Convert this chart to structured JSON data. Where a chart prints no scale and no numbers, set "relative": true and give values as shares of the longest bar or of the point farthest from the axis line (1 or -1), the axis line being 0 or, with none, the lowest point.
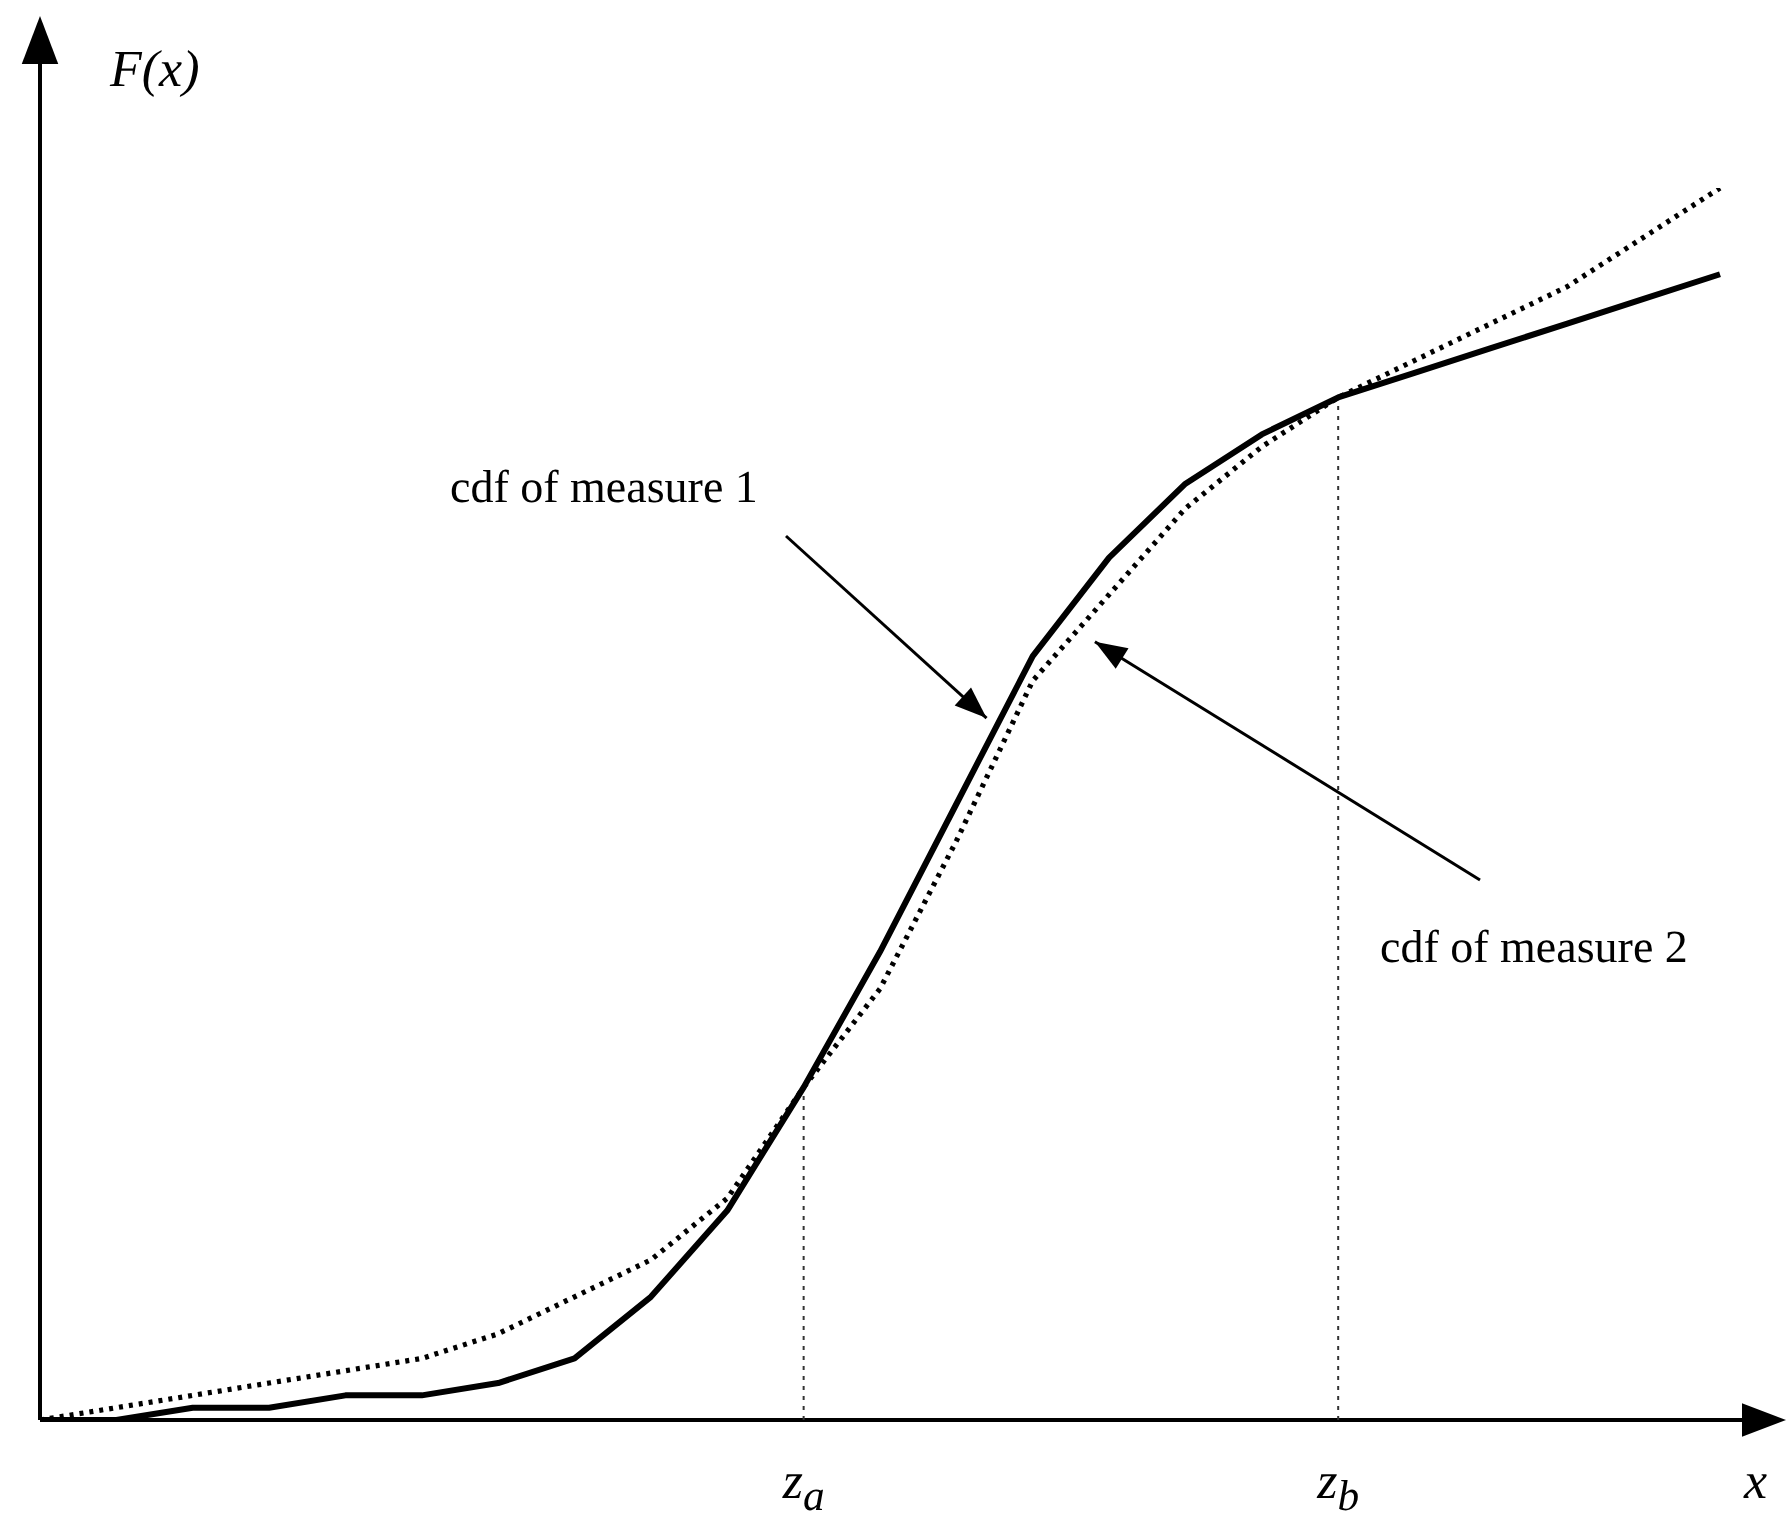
{
  "chart_data": {
    "type": "line",
    "relative": true,
    "xlabel": "x",
    "ylabel": "F(x)",
    "categories": [
      null,
      null,
      null,
      null,
      null,
      null,
      null,
      null,
      null,
      null,
      "z$_{a}$",
      null,
      null,
      null,
      null,
      null,
      null,
      "z$_{b}$",
      null,
      null,
      null,
      null,
      null
    ],
    "series": [
      {
        "color": "#000000",
        "line_style": "solid",
        "values": [
          0,
          0,
          0.01,
          0.01,
          0.02,
          0.02,
          0.03,
          0.05,
          0.1,
          0.17,
          0.27,
          0.38,
          0.5,
          0.62,
          0.7,
          0.76,
          0.8,
          0.83,
          0.85,
          0.87,
          0.89,
          0.91,
          0.93
        ]
      },
      {
        "color": "#000000",
        "line_style": "dotted",
        "values": [
          0,
          0.01,
          0.02,
          0.03,
          0.04,
          0.05,
          0.07,
          0.1,
          0.13,
          0.18,
          0.27,
          0.35,
          0.47,
          0.6,
          0.67,
          0.74,
          0.79,
          0.83,
          0.86,
          0.89,
          0.92,
          0.96,
          1
        ]
      }
    ],
    "annotations": [
      "cdf of measure 1",
      "cdf of measure 2"
    ],
    "ref_lines": [
      {
        "axis": "x",
        "value": "z$_{a}$",
        "line_style": "dotted"
      },
      {
        "axis": "x",
        "value": "z$_{b}$",
        "line_style": "dotted"
      }
    ]
  }
}
